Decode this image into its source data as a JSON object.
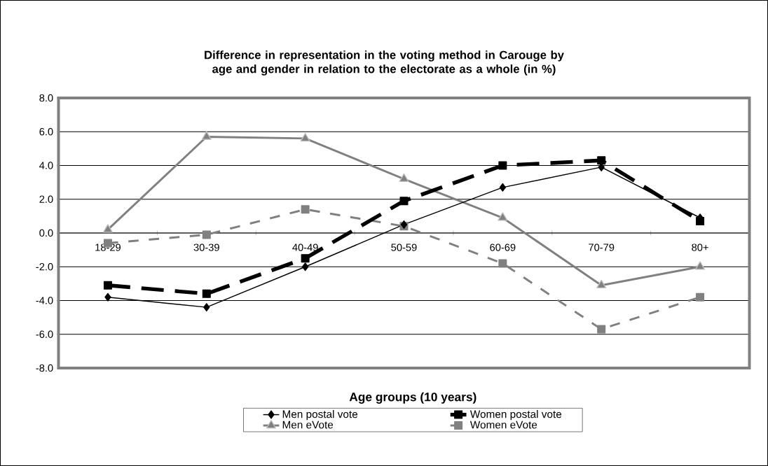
{
  "chart_data": {
    "type": "line",
    "title": "Difference in representation in the voting method in Carouge by age and gender in relation to the electorate as a whole (in %)",
    "xlabel": "Age groups (10 years)",
    "categories": [
      "18-29",
      "30-39",
      "40-49",
      "50-59",
      "60-69",
      "70-79",
      "80+"
    ],
    "ylim": [
      -8,
      8
    ],
    "yticks": [
      {
        "value": -8,
        "label": "-8.0"
      },
      {
        "value": -6,
        "label": "-6.0"
      },
      {
        "value": -4,
        "label": "-4.0"
      },
      {
        "value": -2,
        "label": "-2.0"
      },
      {
        "value": 0,
        "label": "0.0"
      },
      {
        "value": 2,
        "label": "2.0"
      },
      {
        "value": 4,
        "label": "4.0"
      },
      {
        "value": 6,
        "label": "6.0"
      },
      {
        "value": 8,
        "label": "8.0"
      }
    ],
    "grid": "y",
    "legend": "bottom",
    "series": [
      {
        "name": "Men postal vote",
        "color": "#000000",
        "marker": "diamond",
        "line_style": "solid",
        "values": [
          -3.8,
          -4.4,
          -2.0,
          0.5,
          2.7,
          3.9,
          0.9
        ]
      },
      {
        "name": "Women postal vote",
        "color": "#000000",
        "marker": "square",
        "line_style": "dashed",
        "values": [
          -3.1,
          -3.6,
          -1.5,
          1.9,
          4.0,
          4.3,
          0.7
        ]
      },
      {
        "name": "Men eVote",
        "color": "#808080",
        "marker": "triangle",
        "line_style": "solid",
        "values": [
          0.2,
          5.7,
          5.6,
          3.2,
          0.9,
          -3.1,
          -2.0
        ]
      },
      {
        "name": "Women eVote",
        "color": "#808080",
        "marker": "square",
        "line_style": "dashed",
        "values": [
          -0.6,
          -0.1,
          1.4,
          0.4,
          -1.8,
          -5.7,
          -3.8
        ]
      }
    ]
  }
}
